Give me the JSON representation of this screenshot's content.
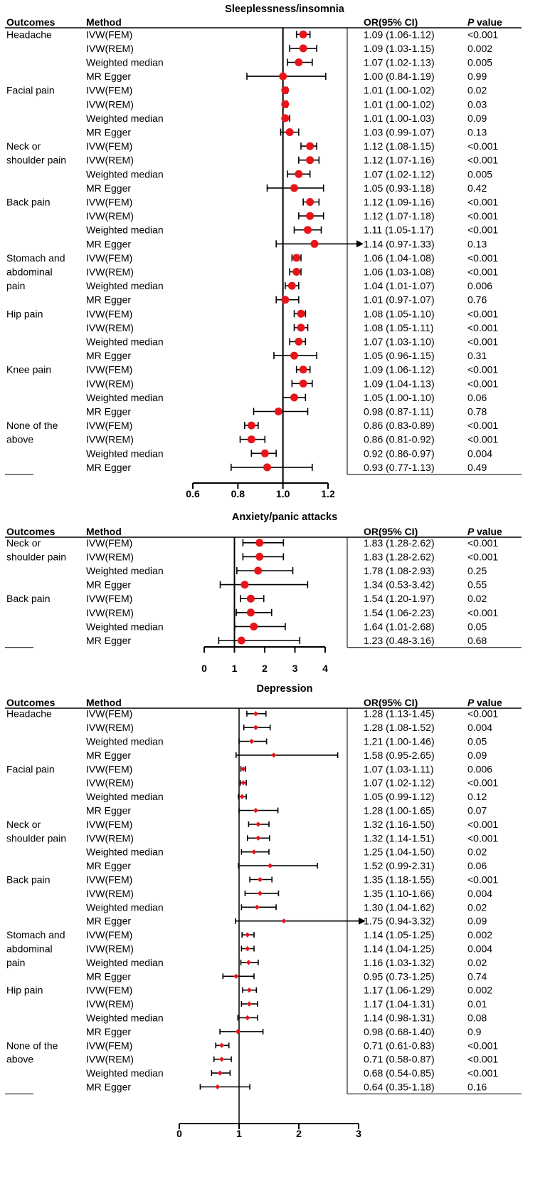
{
  "header": {
    "outcomes": "Outcomes",
    "method": "Method",
    "or_ci": "OR(95% CI)",
    "p_italic": "P",
    "p_rest": "value"
  },
  "colors": {
    "point": "#e8141a",
    "line": "#000000"
  },
  "chart_data": [
    {
      "type": "forest",
      "title": "Sleeplessness/insomnia",
      "xlim": [
        0.6,
        1.2
      ],
      "xticks": [
        0.6,
        0.8,
        1.0,
        1.2
      ],
      "tick_labels": [
        "0.6",
        "0.8",
        "1.0",
        "1.2"
      ],
      "reference": 1.0,
      "groups": [
        {
          "outcome": [
            "Headache"
          ],
          "rows": [
            {
              "method": "IVW(FEM)",
              "or": 1.09,
              "lo": 1.06,
              "hi": 1.12,
              "ci": "1.09 (1.06-1.12)",
              "p": "<0.001"
            },
            {
              "method": "IVW(REM)",
              "or": 1.09,
              "lo": 1.03,
              "hi": 1.15,
              "ci": "1.09 (1.03-1.15)",
              "p": "0.002"
            },
            {
              "method": "Weighted median",
              "or": 1.07,
              "lo": 1.02,
              "hi": 1.13,
              "ci": "1.07 (1.02-1.13)",
              "p": "0.005"
            },
            {
              "method": "MR Egger",
              "or": 1.0,
              "lo": 0.84,
              "hi": 1.19,
              "ci": "1.00 (0.84-1.19)",
              "p": "0.99"
            }
          ]
        },
        {
          "outcome": [
            "Facial pain"
          ],
          "rows": [
            {
              "method": "IVW(FEM)",
              "or": 1.01,
              "lo": 1.0,
              "hi": 1.02,
              "ci": "1.01 (1.00-1.02)",
              "p": "0.02"
            },
            {
              "method": "IVW(REM)",
              "or": 1.01,
              "lo": 1.0,
              "hi": 1.02,
              "ci": "1.01 (1.00-1.02)",
              "p": "0.03"
            },
            {
              "method": "Weighted median",
              "or": 1.01,
              "lo": 1.0,
              "hi": 1.03,
              "ci": "1.01 (1.00-1.03)",
              "p": "0.09"
            },
            {
              "method": "MR Egger",
              "or": 1.03,
              "lo": 0.99,
              "hi": 1.07,
              "ci": "1.03 (0.99-1.07)",
              "p": "0.13"
            }
          ]
        },
        {
          "outcome": [
            "Neck or",
            "shoulder pain"
          ],
          "rows": [
            {
              "method": "IVW(FEM)",
              "or": 1.12,
              "lo": 1.08,
              "hi": 1.15,
              "ci": "1.12 (1.08-1.15)",
              "p": "<0.001"
            },
            {
              "method": "IVW(REM)",
              "or": 1.12,
              "lo": 1.07,
              "hi": 1.16,
              "ci": "1.12 (1.07-1.16)",
              "p": "<0.001"
            },
            {
              "method": "Weighted median",
              "or": 1.07,
              "lo": 1.02,
              "hi": 1.12,
              "ci": "1.07 (1.02-1.12)",
              "p": "0.005"
            },
            {
              "method": "MR Egger",
              "or": 1.05,
              "lo": 0.93,
              "hi": 1.18,
              "ci": "1.05 (0.93-1.18)",
              "p": "0.42"
            }
          ]
        },
        {
          "outcome": [
            "Back pain"
          ],
          "rows": [
            {
              "method": "IVW(FEM)",
              "or": 1.12,
              "lo": 1.09,
              "hi": 1.16,
              "ci": "1.12 (1.09-1.16)",
              "p": "<0.001"
            },
            {
              "method": "IVW(REM)",
              "or": 1.12,
              "lo": 1.07,
              "hi": 1.18,
              "ci": "1.12 (1.07-1.18)",
              "p": "<0.001"
            },
            {
              "method": "Weighted median",
              "or": 1.11,
              "lo": 1.05,
              "hi": 1.17,
              "ci": "1.11 (1.05-1.17)",
              "p": "<0.001"
            },
            {
              "method": "MR Egger",
              "or": 1.14,
              "lo": 0.97,
              "hi": 1.33,
              "ci": "1.14 (0.97-1.33)",
              "p": "0.13"
            }
          ]
        },
        {
          "outcome": [
            "Stomach and",
            "abdominal",
            "pain"
          ],
          "rows": [
            {
              "method": "IVW(FEM)",
              "or": 1.06,
              "lo": 1.04,
              "hi": 1.08,
              "ci": "1.06 (1.04-1.08)",
              "p": "<0.001"
            },
            {
              "method": "IVW(REM)",
              "or": 1.06,
              "lo": 1.03,
              "hi": 1.08,
              "ci": "1.06 (1.03-1.08)",
              "p": "<0.001"
            },
            {
              "method": "Weighted median",
              "or": 1.04,
              "lo": 1.01,
              "hi": 1.07,
              "ci": "1.04 (1.01-1.07)",
              "p": "0.006"
            },
            {
              "method": "MR Egger",
              "or": 1.01,
              "lo": 0.97,
              "hi": 1.07,
              "ci": "1.01 (0.97-1.07)",
              "p": "0.76"
            }
          ]
        },
        {
          "outcome": [
            "Hip pain"
          ],
          "rows": [
            {
              "method": "IVW(FEM)",
              "or": 1.08,
              "lo": 1.05,
              "hi": 1.1,
              "ci": "1.08 (1.05-1.10)",
              "p": "<0.001"
            },
            {
              "method": "IVW(REM)",
              "or": 1.08,
              "lo": 1.05,
              "hi": 1.11,
              "ci": "1.08 (1.05-1.11)",
              "p": "<0.001"
            },
            {
              "method": "Weighted median",
              "or": 1.07,
              "lo": 1.03,
              "hi": 1.1,
              "ci": "1.07 (1.03-1.10)",
              "p": "<0.001"
            },
            {
              "method": "MR Egger",
              "or": 1.05,
              "lo": 0.96,
              "hi": 1.15,
              "ci": "1.05 (0.96-1.15)",
              "p": "0.31"
            }
          ]
        },
        {
          "outcome": [
            "Knee pain"
          ],
          "rows": [
            {
              "method": "IVW(FEM)",
              "or": 1.09,
              "lo": 1.06,
              "hi": 1.12,
              "ci": "1.09 (1.06-1.12)",
              "p": "<0.001"
            },
            {
              "method": "IVW(REM)",
              "or": 1.09,
              "lo": 1.04,
              "hi": 1.13,
              "ci": "1.09 (1.04-1.13)",
              "p": "<0.001"
            },
            {
              "method": "Weighted median",
              "or": 1.05,
              "lo": 1.0,
              "hi": 1.1,
              "ci": "1.05 (1.00-1.10)",
              "p": "0.06"
            },
            {
              "method": "MR Egger",
              "or": 0.98,
              "lo": 0.87,
              "hi": 1.11,
              "ci": "0.98 (0.87-1.11)",
              "p": "0.78"
            }
          ]
        },
        {
          "outcome": [
            "None of the",
            "above"
          ],
          "rows": [
            {
              "method": "IVW(FEM)",
              "or": 0.86,
              "lo": 0.83,
              "hi": 0.89,
              "ci": "0.86 (0.83-0.89)",
              "p": "<0.001"
            },
            {
              "method": "IVW(REM)",
              "or": 0.86,
              "lo": 0.81,
              "hi": 0.92,
              "ci": "0.86 (0.81-0.92)",
              "p": "<0.001"
            },
            {
              "method": "Weighted median",
              "or": 0.92,
              "lo": 0.86,
              "hi": 0.97,
              "ci": "0.92 (0.86-0.97)",
              "p": "0.004"
            },
            {
              "method": "MR Egger",
              "or": 0.93,
              "lo": 0.77,
              "hi": 1.13,
              "ci": "0.93 (0.77-1.13)",
              "p": "0.49"
            }
          ]
        }
      ]
    },
    {
      "type": "forest",
      "title": "Anxiety/panic attacks",
      "xlim": [
        0,
        4
      ],
      "xticks": [
        0,
        1,
        2,
        3,
        4
      ],
      "tick_labels": [
        "0",
        "1",
        "2",
        "3",
        "4"
      ],
      "reference": 1,
      "groups": [
        {
          "outcome": [
            "Neck or",
            "shoulder pain"
          ],
          "rows": [
            {
              "method": "IVW(FEM)",
              "or": 1.83,
              "lo": 1.28,
              "hi": 2.62,
              "ci": "1.83 (1.28-2.62)",
              "p": "<0.001"
            },
            {
              "method": "IVW(REM)",
              "or": 1.83,
              "lo": 1.28,
              "hi": 2.62,
              "ci": "1.83 (1.28-2.62)",
              "p": "<0.001"
            },
            {
              "method": "Weighted median",
              "or": 1.78,
              "lo": 1.08,
              "hi": 2.93,
              "ci": "1.78 (1.08-2.93)",
              "p": "0.25"
            },
            {
              "method": "MR Egger",
              "or": 1.34,
              "lo": 0.53,
              "hi": 3.42,
              "ci": "1.34 (0.53-3.42)",
              "p": "0.55"
            }
          ]
        },
        {
          "outcome": [
            "Back pain"
          ],
          "rows": [
            {
              "method": "IVW(FEM)",
              "or": 1.54,
              "lo": 1.2,
              "hi": 1.97,
              "ci": "1.54 (1.20-1.97)",
              "p": "0.02"
            },
            {
              "method": "IVW(REM)",
              "or": 1.54,
              "lo": 1.06,
              "hi": 2.23,
              "ci": "1.54 (1.06-2.23)",
              "p": "<0.001"
            },
            {
              "method": "Weighted median",
              "or": 1.64,
              "lo": 1.01,
              "hi": 2.68,
              "ci": "1.64 (1.01-2.68)",
              "p": "0.05"
            },
            {
              "method": "MR Egger",
              "or": 1.23,
              "lo": 0.48,
              "hi": 3.16,
              "ci": "1.23 (0.48-3.16)",
              "p": "0.68"
            }
          ]
        }
      ]
    },
    {
      "type": "forest",
      "title": "Depression",
      "xlim": [
        0,
        3
      ],
      "xticks": [
        0,
        1,
        2,
        3
      ],
      "tick_labels": [
        "0",
        "1",
        "2",
        "3"
      ],
      "reference": 1,
      "groups": [
        {
          "outcome": [
            "Headache"
          ],
          "rows": [
            {
              "method": "IVW(FEM)",
              "or": 1.28,
              "lo": 1.13,
              "hi": 1.45,
              "ci": "1.28 (1.13-1.45)",
              "p": "<0.001"
            },
            {
              "method": "IVW(REM)",
              "or": 1.28,
              "lo": 1.08,
              "hi": 1.52,
              "ci": "1.28 (1.08-1.52)",
              "p": "0.004"
            },
            {
              "method": "Weighted median",
              "or": 1.21,
              "lo": 1.0,
              "hi": 1.46,
              "ci": "1.21 (1.00-1.46)",
              "p": "0.05"
            },
            {
              "method": "MR Egger",
              "or": 1.58,
              "lo": 0.95,
              "hi": 2.65,
              "ci": "1.58 (0.95-2.65)",
              "p": "0.09"
            }
          ]
        },
        {
          "outcome": [
            "Facial pain"
          ],
          "rows": [
            {
              "method": "IVW(FEM)",
              "or": 1.07,
              "lo": 1.03,
              "hi": 1.11,
              "ci": "1.07 (1.03-1.11)",
              "p": "0.006"
            },
            {
              "method": "IVW(REM)",
              "or": 1.07,
              "lo": 1.02,
              "hi": 1.12,
              "ci": "1.07 (1.02-1.12)",
              "p": "<0.001"
            },
            {
              "method": "Weighted median",
              "or": 1.05,
              "lo": 0.99,
              "hi": 1.12,
              "ci": "1.05 (0.99-1.12)",
              "p": "0.12"
            },
            {
              "method": "MR Egger",
              "or": 1.28,
              "lo": 1.0,
              "hi": 1.65,
              "ci": "1.28 (1.00-1.65)",
              "p": "0.07"
            }
          ]
        },
        {
          "outcome": [
            "Neck or",
            "shoulder pain"
          ],
          "rows": [
            {
              "method": "IVW(FEM)",
              "or": 1.32,
              "lo": 1.16,
              "hi": 1.5,
              "ci": "1.32 (1.16-1.50)",
              "p": "<0.001"
            },
            {
              "method": "IVW(REM)",
              "or": 1.32,
              "lo": 1.14,
              "hi": 1.51,
              "ci": "1.32 (1.14-1.51)",
              "p": "<0.001"
            },
            {
              "method": "Weighted median",
              "or": 1.25,
              "lo": 1.04,
              "hi": 1.5,
              "ci": "1.25 (1.04-1.50)",
              "p": "0.02"
            },
            {
              "method": "MR Egger",
              "or": 1.52,
              "lo": 0.99,
              "hi": 2.31,
              "ci": "1.52 (0.99-2.31)",
              "p": "0.06"
            }
          ]
        },
        {
          "outcome": [
            "Back pain"
          ],
          "rows": [
            {
              "method": "IVW(FEM)",
              "or": 1.35,
              "lo": 1.18,
              "hi": 1.55,
              "ci": "1.35 (1.18-1.55)",
              "p": "<0.001"
            },
            {
              "method": "IVW(REM)",
              "or": 1.35,
              "lo": 1.1,
              "hi": 1.66,
              "ci": "1.35 (1.10-1.66)",
              "p": "0.004"
            },
            {
              "method": "Weighted median",
              "or": 1.3,
              "lo": 1.04,
              "hi": 1.62,
              "ci": "1.30 (1.04-1.62)",
              "p": "0.02"
            },
            {
              "method": "MR Egger",
              "or": 1.75,
              "lo": 0.94,
              "hi": 3.32,
              "ci": "1.75 (0.94-3.32)",
              "p": "0.09"
            }
          ]
        },
        {
          "outcome": [
            "Stomach and",
            "abdominal",
            "pain"
          ],
          "rows": [
            {
              "method": "IVW(FEM)",
              "or": 1.14,
              "lo": 1.05,
              "hi": 1.25,
              "ci": "1.14 (1.05-1.25)",
              "p": "0.002"
            },
            {
              "method": "IVW(REM)",
              "or": 1.14,
              "lo": 1.04,
              "hi": 1.25,
              "ci": "1.14 (1.04-1.25)",
              "p": "0.004"
            },
            {
              "method": "Weighted median",
              "or": 1.16,
              "lo": 1.03,
              "hi": 1.32,
              "ci": "1.16 (1.03-1.32)",
              "p": "0.02"
            },
            {
              "method": "MR Egger",
              "or": 0.95,
              "lo": 0.73,
              "hi": 1.25,
              "ci": "0.95 (0.73-1.25)",
              "p": "0.74"
            }
          ]
        },
        {
          "outcome": [
            "Hip pain"
          ],
          "rows": [
            {
              "method": "IVW(FEM)",
              "or": 1.17,
              "lo": 1.06,
              "hi": 1.29,
              "ci": "1.17 (1.06-1.29)",
              "p": "0.002"
            },
            {
              "method": "IVW(REM)",
              "or": 1.17,
              "lo": 1.04,
              "hi": 1.31,
              "ci": "1.17 (1.04-1.31)",
              "p": "0.01"
            },
            {
              "method": "Weighted median",
              "or": 1.14,
              "lo": 0.98,
              "hi": 1.31,
              "ci": "1.14 (0.98-1.31)",
              "p": "0.08"
            },
            {
              "method": "MR Egger",
              "or": 0.98,
              "lo": 0.68,
              "hi": 1.4,
              "ci": "0.98 (0.68-1.40)",
              "p": "0.9"
            }
          ]
        },
        {
          "outcome": [
            "None of the",
            "above"
          ],
          "rows": [
            {
              "method": "IVW(FEM)",
              "or": 0.71,
              "lo": 0.61,
              "hi": 0.83,
              "ci": "0.71 (0.61-0.83)",
              "p": "<0.001"
            },
            {
              "method": "IVW(REM)",
              "or": 0.71,
              "lo": 0.58,
              "hi": 0.87,
              "ci": "0.71 (0.58-0.87)",
              "p": "<0.001"
            },
            {
              "method": "Weighted median",
              "or": 0.68,
              "lo": 0.54,
              "hi": 0.85,
              "ci": "0.68 (0.54-0.85)",
              "p": "<0.001"
            },
            {
              "method": "MR Egger",
              "or": 0.64,
              "lo": 0.35,
              "hi": 1.18,
              "ci": "0.64 (0.35-1.18)",
              "p": "0.16"
            }
          ]
        }
      ]
    }
  ]
}
